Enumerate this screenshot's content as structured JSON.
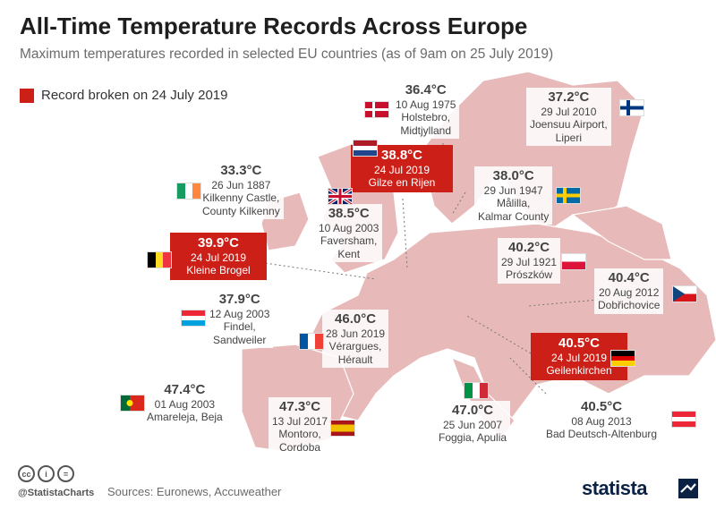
{
  "header": {
    "title": "All-Time Temperature Records Across Europe",
    "subtitle": "Maximum temperatures recorded in selected EU countries (as of 9am on 25 July 2019)"
  },
  "legend": {
    "label": "Record broken on 24 July 2019",
    "color": "#cc1f18"
  },
  "colors": {
    "map_fill": "#e7b9b9",
    "sea": "#ffffff",
    "record": "#cc1f18",
    "text": "#444444"
  },
  "chart_data": {
    "type": "table",
    "title": "All-Time Temperature Records Across Europe",
    "subtitle": "Maximum temperatures recorded in selected EU countries (as of 9am on 25 July 2019)",
    "records": [
      {
        "country": "Denmark",
        "temp": "36.4°C",
        "date": "10 Aug 1975",
        "place": "Holstebro, Midtjylland",
        "broken_24_jul_2019": false
      },
      {
        "country": "Finland",
        "temp": "37.2°C",
        "date": "29 Jul 2010",
        "place": "Joensuu Airport, Liperi",
        "broken_24_jul_2019": false
      },
      {
        "country": "Netherlands",
        "temp": "38.8°C",
        "date": "24 Jul 2019",
        "place": "Gilze en Rijen",
        "broken_24_jul_2019": true
      },
      {
        "country": "Ireland",
        "temp": "33.3°C",
        "date": "26 Jun 1887",
        "place": "Kilkenny Castle, County Kilkenny",
        "broken_24_jul_2019": false
      },
      {
        "country": "Sweden",
        "temp": "38.0°C",
        "date": "29 Jun 1947",
        "place": "Målilla, Kalmar County",
        "broken_24_jul_2019": false
      },
      {
        "country": "United Kingdom",
        "temp": "38.5°C",
        "date": "10 Aug 2003",
        "place": "Faversham, Kent",
        "broken_24_jul_2019": false
      },
      {
        "country": "Belgium",
        "temp": "39.9°C",
        "date": "24 Jul 2019",
        "place": "Kleine Brogel",
        "broken_24_jul_2019": true
      },
      {
        "country": "Poland",
        "temp": "40.2°C",
        "date": "29 Jul 1921",
        "place": "Prószków",
        "broken_24_jul_2019": false
      },
      {
        "country": "Czech Republic",
        "temp": "40.4°C",
        "date": "20 Aug 2012",
        "place": "Dobřichovice",
        "broken_24_jul_2019": false
      },
      {
        "country": "Luxembourg",
        "temp": "37.9°C",
        "date": "12 Aug 2003",
        "place": "Findel, Sandweiler",
        "broken_24_jul_2019": false
      },
      {
        "country": "France",
        "temp": "46.0°C",
        "date": "28 Jun 2019",
        "place": "Vérargues, Hérault",
        "broken_24_jul_2019": false
      },
      {
        "country": "Germany",
        "temp": "40.5°C",
        "date": "24 Jul 2019",
        "place": "Geilenkirchen",
        "broken_24_jul_2019": true
      },
      {
        "country": "Portugal",
        "temp": "47.4°C",
        "date": "01 Aug 2003",
        "place": "Amareleja, Beja",
        "broken_24_jul_2019": false
      },
      {
        "country": "Spain",
        "temp": "47.3°C",
        "date": "13 Jul 2017",
        "place": "Montoro, Cordoba",
        "broken_24_jul_2019": false
      },
      {
        "country": "Italy",
        "temp": "47.0°C",
        "date": "25 Jun 2007",
        "place": "Foggia, Apulia",
        "broken_24_jul_2019": false
      },
      {
        "country": "Austria",
        "temp": "40.5°C",
        "date": "08 Aug 2013",
        "place": "Bad Deutsch-Altenburg",
        "broken_24_jul_2019": false
      }
    ]
  },
  "labels": {
    "dk": {
      "temp": "36.4°C",
      "date": "10 Aug 1975",
      "place1": "Holstebro,",
      "place2": "Midtjylland"
    },
    "fi": {
      "temp": "37.2°C",
      "date": "29 Jul 2010",
      "place1": "Joensuu Airport,",
      "place2": "Liperi"
    },
    "nl": {
      "temp": "38.8°C",
      "date": "24 Jul 2019",
      "place1": "Gilze en Rijen"
    },
    "ie": {
      "temp": "33.3°C",
      "date": "26 Jun 1887",
      "place1": "Kilkenny Castle,",
      "place2": "County Kilkenny"
    },
    "se": {
      "temp": "38.0°C",
      "date": "29 Jun 1947",
      "place1": "Målilla,",
      "place2": "Kalmar County"
    },
    "uk": {
      "temp": "38.5°C",
      "date": "10 Aug 2003",
      "place1": "Faversham,",
      "place2": "Kent"
    },
    "be": {
      "temp": "39.9°C",
      "date": "24 Jul 2019",
      "place1": "Kleine Brogel"
    },
    "pl": {
      "temp": "40.2°C",
      "date": "29 Jul 1921",
      "place1": "Prószków"
    },
    "cz": {
      "temp": "40.4°C",
      "date": "20 Aug 2012",
      "place1": "Dobřichovice"
    },
    "lu": {
      "temp": "37.9°C",
      "date": "12 Aug 2003",
      "place1": "Findel,",
      "place2": "Sandweiler"
    },
    "fr": {
      "temp": "46.0°C",
      "date": "28 Jun 2019",
      "place1": "Vérargues,",
      "place2": "Hérault"
    },
    "de": {
      "temp": "40.5°C",
      "date": "24 Jul 2019",
      "place1": "Geilenkirchen"
    },
    "pt": {
      "temp": "47.4°C",
      "date": "01 Aug 2003",
      "place1": "Amareleja, Beja"
    },
    "es": {
      "temp": "47.3°C",
      "date": "13 Jul 2017",
      "place1": "Montoro,",
      "place2": "Cordoba"
    },
    "it": {
      "temp": "47.0°C",
      "date": "25 Jun 2007",
      "place1": "Foggia, Apulia"
    },
    "at": {
      "temp": "40.5°C",
      "date": "08 Aug 2013",
      "place1": "Bad Deutsch-Altenburg"
    }
  },
  "footer": {
    "handle": "@StatistaCharts",
    "sources": "Sources: Euronews, Accuweather",
    "brand": "statista",
    "icons": [
      "cc-icon",
      "by-icon",
      "nd-icon"
    ]
  }
}
